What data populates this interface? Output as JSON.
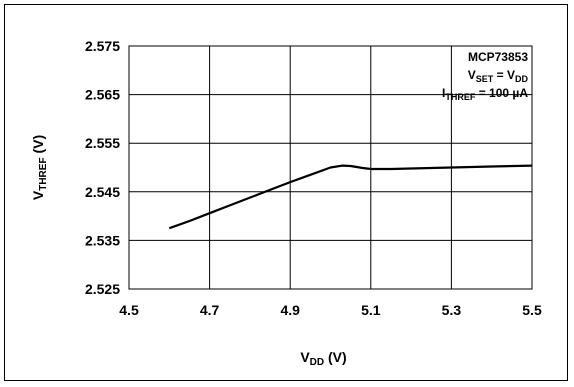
{
  "chart_data": {
    "type": "line",
    "title": "",
    "xlabel": "V",
    "xlabel_sub": "DD",
    "xlabel_unit": " (V)",
    "ylabel": "V",
    "ylabel_sub": "THREF",
    "ylabel_unit": " (V)",
    "xlim": [
      4.5,
      5.5
    ],
    "ylim": [
      2.525,
      2.575
    ],
    "xticks": [
      "4.5",
      "4.7",
      "4.9",
      "5.1",
      "5.3",
      "5.5"
    ],
    "xtick_values": [
      4.5,
      4.7,
      4.9,
      5.1,
      5.3,
      5.5
    ],
    "yticks": [
      "2.575",
      "2.565",
      "2.555",
      "2.545",
      "2.535",
      "2.525"
    ],
    "ytick_values": [
      2.575,
      2.565,
      2.555,
      2.545,
      2.535,
      2.525
    ],
    "grid": true,
    "legend_position": "top-right",
    "annotation": {
      "line1": "MCP73853",
      "line2_main": "V",
      "line2_sub": "SET",
      "line2_mid": " = V",
      "line2_sub2": "DD",
      "line3_main": "I",
      "line3_sub": "THREF",
      "line3_rest": " = 100 µA"
    },
    "series": [
      {
        "x": [
          4.6,
          4.65,
          4.7,
          4.75,
          4.8,
          4.85,
          4.9,
          4.95,
          5.0,
          5.03,
          5.05,
          5.08,
          5.1,
          5.15,
          5.2,
          5.3,
          5.4,
          5.5
        ],
        "y": [
          2.5375,
          2.539,
          2.5406,
          2.5422,
          2.5438,
          2.5454,
          2.547,
          2.5485,
          2.55,
          2.5504,
          2.5503,
          2.5499,
          2.5497,
          2.5497,
          2.5498,
          2.55,
          2.5502,
          2.5504
        ],
        "color": "#000000"
      }
    ]
  }
}
